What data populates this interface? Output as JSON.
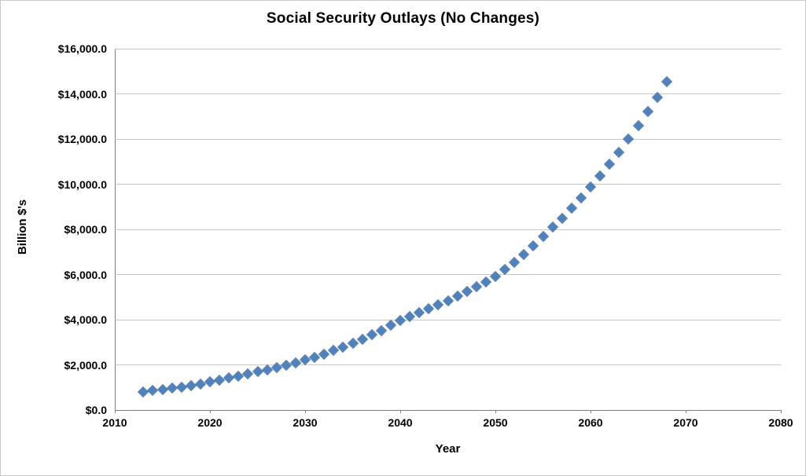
{
  "chart_data": {
    "type": "scatter",
    "title": "Social Security Outlays (No Changes)",
    "xlabel": "Year",
    "ylabel": "Billion $'s",
    "xlim": [
      2010,
      2080
    ],
    "ylim": [
      0,
      16000
    ],
    "grid": true,
    "legend": null,
    "marker": "diamond",
    "colors": {
      "marker": "#4F81BD",
      "gridline": "#C6C6C6",
      "axis": "#7F7F7F",
      "text": "#000000",
      "background": "#FFFFFF"
    },
    "x_ticks": [
      2010,
      2020,
      2030,
      2040,
      2050,
      2060,
      2070,
      2080
    ],
    "x_tick_labels": [
      "2010",
      "2020",
      "2030",
      "2040",
      "2050",
      "2060",
      "2070",
      "2080"
    ],
    "y_ticks": [
      0,
      2000,
      4000,
      6000,
      8000,
      10000,
      12000,
      14000,
      16000
    ],
    "y_tick_labels": [
      "$0.0",
      "$2,000.0",
      "$4,000.0",
      "$6,000.0",
      "$8,000.0",
      "$10,000.0",
      "$12,000.0",
      "$14,000.0",
      "$16,000.0"
    ],
    "x": [
      2013,
      2014,
      2015,
      2016,
      2017,
      2018,
      2019,
      2020,
      2021,
      2022,
      2023,
      2024,
      2025,
      2026,
      2027,
      2028,
      2029,
      2030,
      2031,
      2032,
      2033,
      2034,
      2035,
      2036,
      2037,
      2038,
      2039,
      2040,
      2041,
      2042,
      2043,
      2044,
      2045,
      2046,
      2047,
      2048,
      2049,
      2050,
      2051,
      2052,
      2053,
      2054,
      2055,
      2056,
      2057,
      2058,
      2059,
      2060,
      2061,
      2062,
      2063,
      2064,
      2065,
      2066,
      2067,
      2068
    ],
    "y": [
      810,
      860,
      910,
      960,
      1020,
      1090,
      1160,
      1240,
      1320,
      1410,
      1500,
      1590,
      1690,
      1780,
      1880,
      1980,
      2080,
      2210,
      2340,
      2480,
      2630,
      2790,
      2960,
      3140,
      3330,
      3530,
      3740,
      3970,
      4130,
      4300,
      4470,
      4650,
      4840,
      5040,
      5240,
      5450,
      5670,
      5900,
      6220,
      6550,
      6900,
      7280,
      7670,
      8090,
      8500,
      8940,
      9390,
      9880,
      10370,
      10880,
      11420,
      11990,
      12580,
      13210,
      13860,
      14550
    ]
  }
}
